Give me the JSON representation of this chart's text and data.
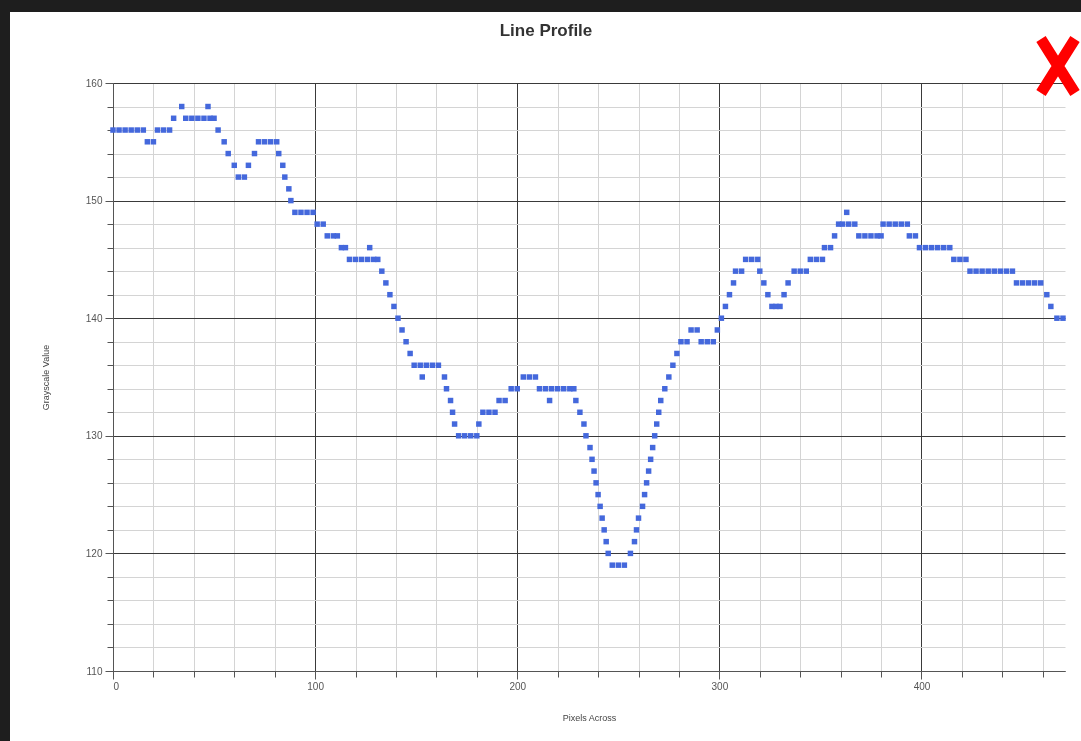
{
  "chart_data": {
    "type": "scatter",
    "title": "Line Profile",
    "xlabel": "Pixels Across",
    "ylabel": "Grayscale Value",
    "color": "#4468dc",
    "marker": "square",
    "grid": true,
    "xlim": [
      0,
      471
    ],
    "ylim": [
      110,
      160
    ],
    "xticks": [
      0,
      {
        "value": 20,
        "label": null
      },
      {
        "value": 40,
        "label": null
      },
      {
        "value": 60,
        "label": null
      },
      {
        "value": 80,
        "label": null
      },
      100,
      {
        "value": 120,
        "label": null
      },
      {
        "value": 140,
        "label": null
      },
      {
        "value": 160,
        "label": null
      },
      {
        "value": 180,
        "label": null
      },
      200,
      {
        "value": 220,
        "label": null
      },
      {
        "value": 240,
        "label": null
      },
      {
        "value": 260,
        "label": null
      },
      {
        "value": 280,
        "label": null
      },
      300,
      {
        "value": 320,
        "label": null
      },
      {
        "value": 340,
        "label": null
      },
      {
        "value": 360,
        "label": null
      },
      {
        "value": 380,
        "label": null
      },
      400,
      {
        "value": 420,
        "label": null
      },
      {
        "value": 440,
        "label": null
      },
      {
        "value": 460,
        "label": null
      }
    ],
    "yticks": [
      110,
      {
        "value": 112,
        "label": null
      },
      {
        "value": 114,
        "label": null
      },
      {
        "value": 116,
        "label": null
      },
      {
        "value": 118,
        "label": null
      },
      120,
      {
        "value": 122,
        "label": null
      },
      {
        "value": 124,
        "label": null
      },
      {
        "value": 126,
        "label": null
      },
      {
        "value": 128,
        "label": null
      },
      130,
      {
        "value": 132,
        "label": null
      },
      {
        "value": 134,
        "label": null
      },
      {
        "value": 136,
        "label": null
      },
      {
        "value": 138,
        "label": null
      },
      140,
      {
        "value": 142,
        "label": null
      },
      {
        "value": 144,
        "label": null
      },
      {
        "value": 146,
        "label": null
      },
      {
        "value": 148,
        "label": null
      },
      150,
      {
        "value": 152,
        "label": null
      },
      {
        "value": 154,
        "label": null
      },
      {
        "value": 156,
        "label": null
      },
      {
        "value": 158,
        "label": null
      },
      160
    ],
    "x": [
      0,
      3,
      6,
      9,
      12,
      15,
      17,
      20,
      22,
      25,
      28,
      30,
      34,
      36,
      39,
      42,
      45,
      47,
      48,
      50,
      52,
      55,
      57,
      60,
      62,
      65,
      67,
      70,
      72,
      75,
      78,
      81,
      82,
      84,
      85,
      87,
      88,
      90,
      93,
      96,
      99,
      101,
      104,
      106,
      109,
      111,
      113,
      115,
      117,
      120,
      123,
      126,
      127,
      129,
      131,
      133,
      135,
      137,
      139,
      141,
      143,
      145,
      147,
      149,
      152,
      153,
      155,
      158,
      161,
      164,
      165,
      167,
      168,
      169,
      171,
      174,
      177,
      180,
      181,
      183,
      186,
      189,
      191,
      194,
      197,
      200,
      203,
      206,
      209,
      211,
      214,
      216,
      217,
      220,
      223,
      226,
      228,
      229,
      231,
      233,
      234,
      236,
      237,
      238,
      239,
      240,
      241,
      242,
      243,
      244,
      245,
      247,
      250,
      253,
      256,
      258,
      259,
      260,
      262,
      263,
      264,
      265,
      266,
      267,
      268,
      269,
      270,
      271,
      273,
      275,
      277,
      279,
      281,
      284,
      286,
      289,
      291,
      294,
      297,
      299,
      301,
      303,
      305,
      307,
      308,
      311,
      313,
      316,
      319,
      320,
      322,
      324,
      326,
      328,
      330,
      332,
      334,
      337,
      340,
      343,
      345,
      348,
      351,
      352,
      355,
      357,
      359,
      361,
      363,
      364,
      367,
      369,
      372,
      375,
      378,
      380,
      381,
      384,
      387,
      390,
      393,
      394,
      397,
      399,
      402,
      405,
      408,
      411,
      414,
      416,
      419,
      422,
      424,
      427,
      430,
      433,
      436,
      439,
      442,
      445,
      447,
      450,
      453,
      456,
      459,
      462,
      464,
      467,
      470
    ],
    "values": [
      156,
      156,
      156,
      156,
      156,
      156,
      155,
      155,
      156,
      156,
      156,
      157,
      158,
      157,
      157,
      157,
      157,
      158,
      157,
      157,
      156,
      155,
      154,
      153,
      152,
      152,
      153,
      154,
      155,
      155,
      155,
      155,
      154,
      153,
      152,
      151,
      150,
      149,
      149,
      149,
      149,
      148,
      148,
      147,
      147,
      147,
      146,
      146,
      145,
      145,
      145,
      145,
      146,
      145,
      145,
      144,
      143,
      142,
      141,
      140,
      139,
      138,
      137,
      136,
      136,
      135,
      136,
      136,
      136,
      135,
      134,
      133,
      132,
      131,
      130,
      130,
      130,
      130,
      131,
      132,
      132,
      132,
      133,
      133,
      134,
      134,
      135,
      135,
      135,
      134,
      134,
      133,
      134,
      134,
      134,
      134,
      134,
      133,
      132,
      131,
      130,
      129,
      128,
      127,
      126,
      125,
      124,
      123,
      122,
      121,
      120,
      119,
      119,
      119,
      120,
      121,
      122,
      123,
      124,
      125,
      126,
      127,
      128,
      129,
      130,
      131,
      132,
      133,
      134,
      135,
      136,
      137,
      138,
      138,
      139,
      139,
      138,
      138,
      138,
      139,
      140,
      141,
      142,
      143,
      144,
      144,
      145,
      145,
      145,
      144,
      143,
      142,
      141,
      141,
      141,
      142,
      143,
      144,
      144,
      144,
      145,
      145,
      145,
      146,
      146,
      147,
      148,
      148,
      149,
      148,
      148,
      147,
      147,
      147,
      147,
      147,
      148,
      148,
      148,
      148,
      148,
      147,
      147,
      146,
      146,
      146,
      146,
      146,
      146,
      145,
      145,
      145,
      144,
      144,
      144,
      144,
      144,
      144,
      144,
      144,
      143,
      143,
      143,
      143,
      143,
      142,
      141,
      140,
      140
    ]
  }
}
